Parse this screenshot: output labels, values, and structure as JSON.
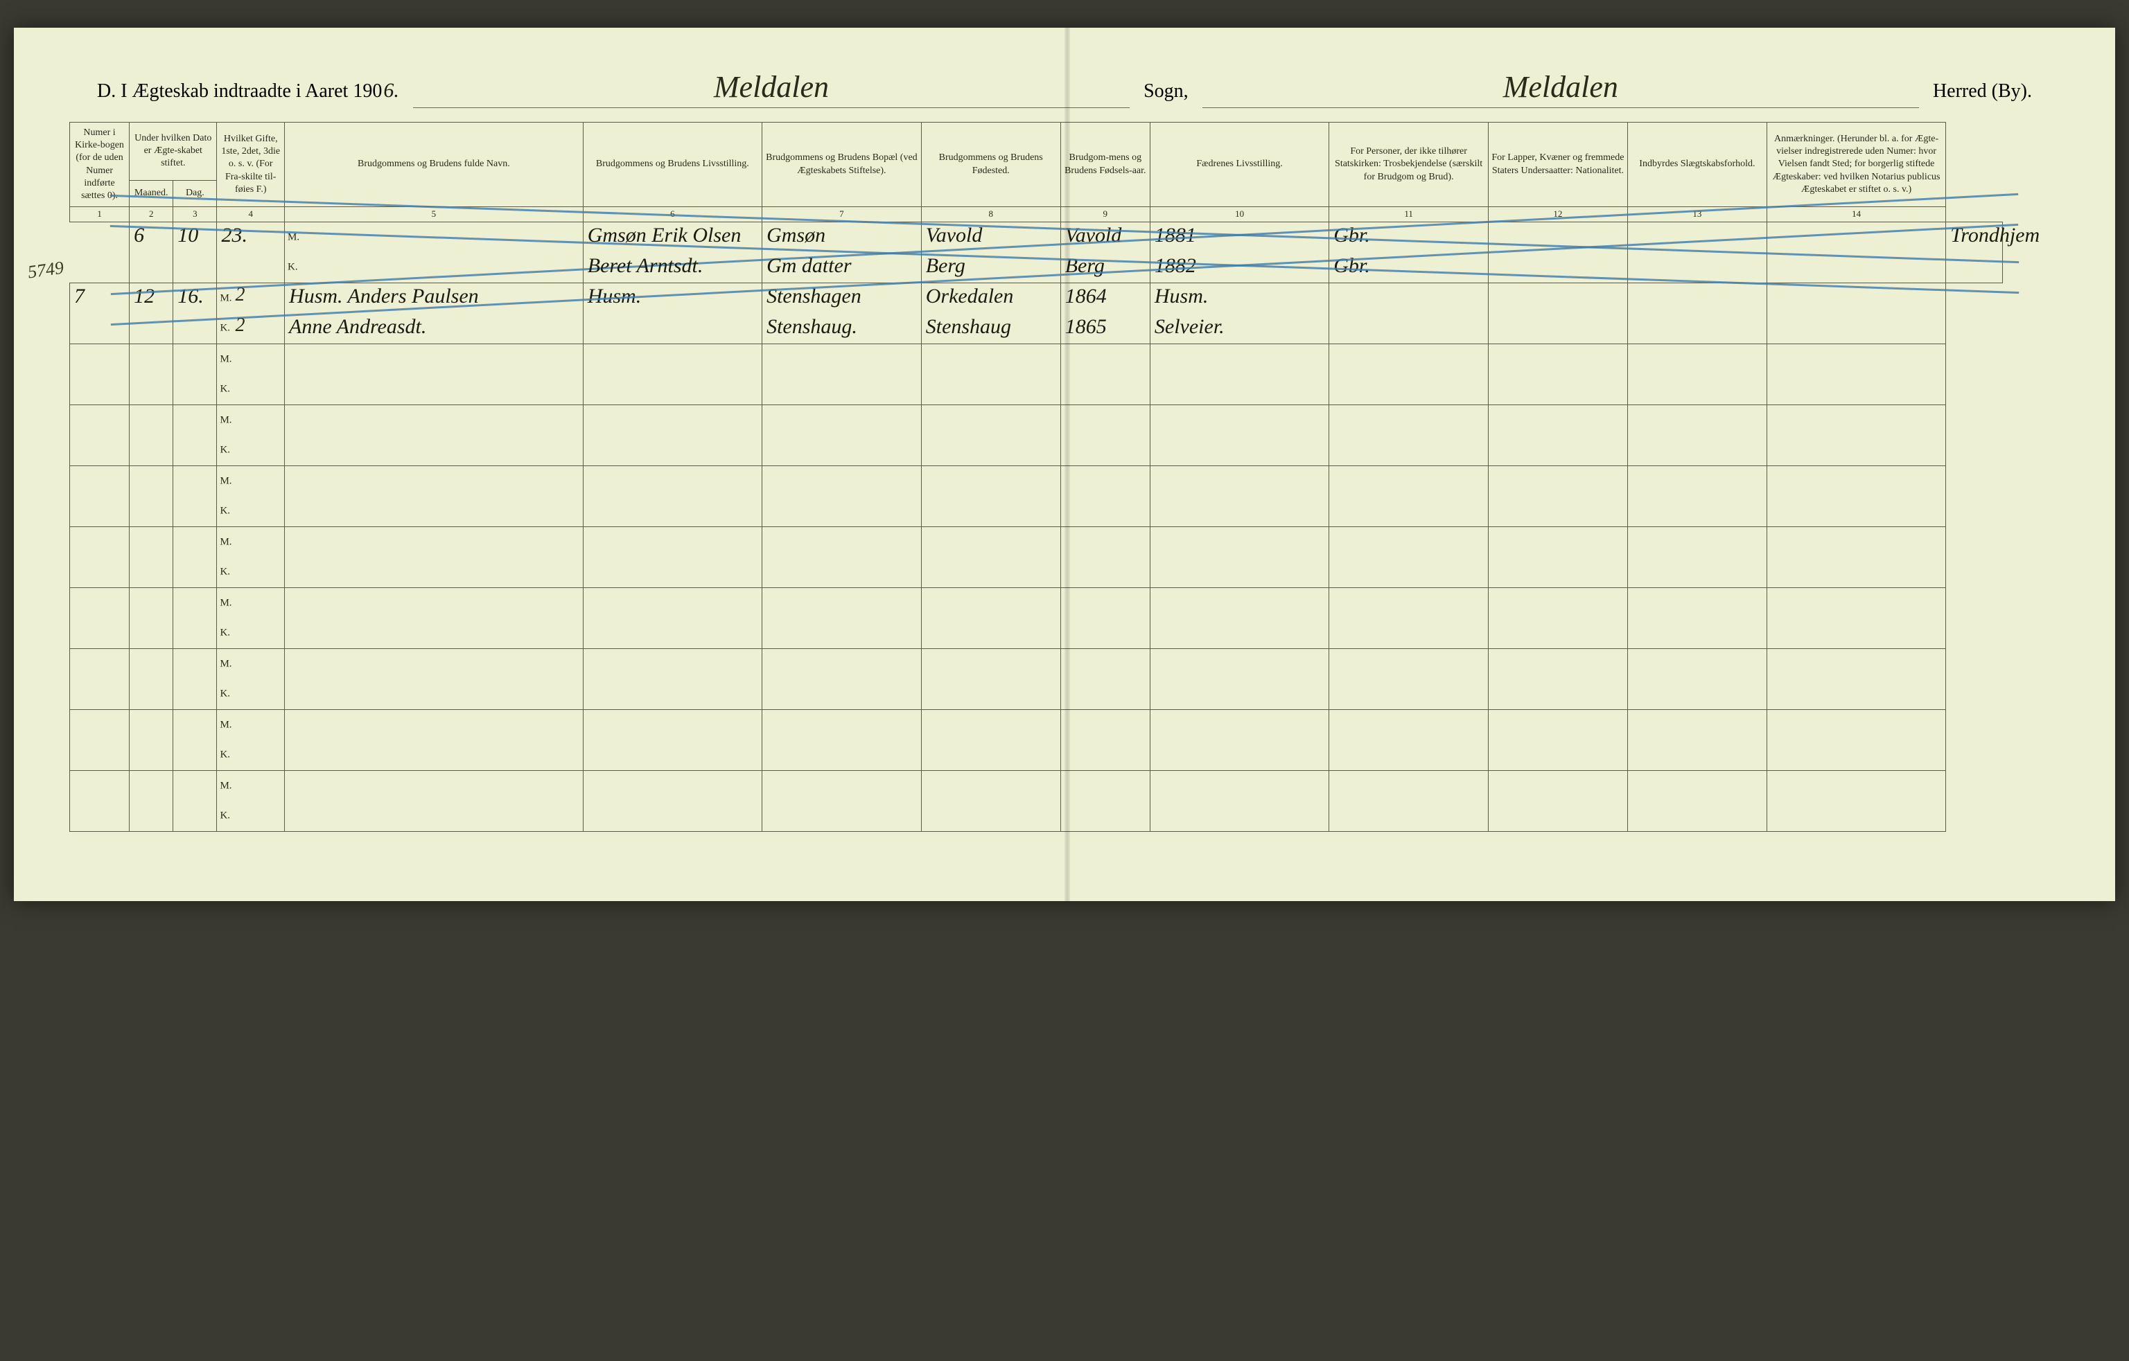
{
  "header": {
    "title_prefix": "D.  I Ægteskab indtraadte i Aaret 190",
    "year_suffix": "6.",
    "sogn_value": "Meldalen",
    "sogn_label": "Sogn,",
    "herred_value": "Meldalen",
    "herred_label": "Herred (By)."
  },
  "colors": {
    "paper": "#eef0d4",
    "rule": "#5a5a45",
    "ink": "#1a1a10",
    "crayon": "#3d7ba8"
  },
  "columns": [
    {
      "num": "1",
      "label": "Numer i Kirke-bogen (for de uden Numer indførte sættes 0)."
    },
    {
      "num": "2",
      "label": "Maaned."
    },
    {
      "num": "3",
      "label": "Dag."
    },
    {
      "num": "4",
      "label": "Hvilket Gifte, 1ste, 2det, 3die o. s. v. (For Fra-skilte til-føies F.)"
    },
    {
      "num": "5",
      "label": "Brudgommens og Brudens fulde Navn."
    },
    {
      "num": "6",
      "label": "Brudgommens og Brudens Livsstilling."
    },
    {
      "num": "7",
      "label": "Brudgommens og Brudens Bopæl (ved Ægteskabets Stiftelse)."
    },
    {
      "num": "8",
      "label": "Brudgommens og Brudens Fødested."
    },
    {
      "num": "9",
      "label": "Brudgom-mens og Brudens Fødsels-aar."
    },
    {
      "num": "10",
      "label": "Fædrenes Livsstilling."
    },
    {
      "num": "11",
      "label": "For Personer, der ikke tilhører Statskirken: Trosbekjendelse (særskilt for Brudgom og Brud)."
    },
    {
      "num": "12",
      "label": "For Lapper, Kvæner og fremmede Staters Undersaatter: Nationalitet."
    },
    {
      "num": "13",
      "label": "Indbyrdes Slægtskabsforhold."
    },
    {
      "num": "14",
      "label": "Anmærkninger. (Herunder bl. a. for Ægte-vielser indregistrerede uden Numer: hvor Vielsen fandt Sted; for borgerlig stiftede Ægteskaber: ved hvilken Notarius publicus Ægteskabet er stiftet o. s. v.)"
    }
  ],
  "group_header_date": "Under hvilken Dato er Ægte-skabet stiftet.",
  "rows": [
    {
      "num": "6",
      "month": "10",
      "day": "23.",
      "crossed": true,
      "groom": {
        "mk": "M.",
        "gifte": "",
        "name": "Gmsøn Erik Olsen",
        "stilling": "Gmsøn",
        "bopael": "Vavold",
        "fodested": "Vavold",
        "aar": "1881",
        "faedre": "Gbr."
      },
      "bride": {
        "mk": "K.",
        "gifte": "",
        "name": "Beret Arntsdt.",
        "stilling": "Gm datter",
        "bopael": "Berg",
        "fodested": "Berg",
        "aar": "1882",
        "faedre": "Gbr."
      },
      "c11": "",
      "c12": "",
      "c13": "",
      "c14": "Trondhjem"
    },
    {
      "num": "7",
      "month": "12",
      "day": "16.",
      "crossed": false,
      "groom": {
        "mk": "M.",
        "gifte": "2",
        "name": "Husm. Anders Paulsen",
        "stilling": "Husm.",
        "bopael": "Stenshagen",
        "fodested": "Orkedalen",
        "aar": "1864",
        "faedre": "Husm."
      },
      "bride": {
        "mk": "K.",
        "gifte": "2",
        "name": "Anne Andreasdt.",
        "stilling": "",
        "bopael": "Stenshaug.",
        "fodested": "Stenshaug",
        "aar": "1865",
        "faedre": "Selveier."
      },
      "c11": "",
      "c12": "",
      "c13": "",
      "c14": ""
    }
  ],
  "empty_row_count": 8,
  "margin_note": "5749"
}
